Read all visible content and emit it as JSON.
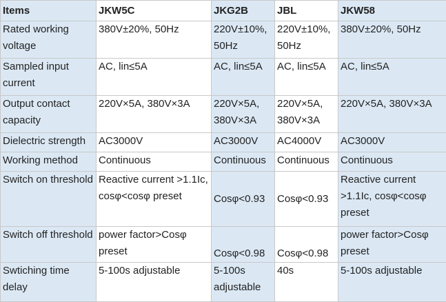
{
  "table": {
    "header": [
      "Items",
      "JKW5C",
      "JKG2B",
      "JBL",
      "JKW58"
    ],
    "rows": [
      [
        "Rated working voltage",
        "380V±20%, 50Hz",
        "220V±10%, 50Hz",
        "220V±10%, 50Hz",
        "380V±20%, 50Hz"
      ],
      [
        "Sampled input current",
        "AC, lin≤5A",
        "AC, lin≤5A",
        "AC, lin≤5A",
        "AC, lin≤5A"
      ],
      [
        "Output contact capacity",
        "220V×5A, 380V×3A",
        "220V×5A, 380V×3A",
        "220V×5A, 380V×3A",
        "220V×5A, 380V×3A"
      ],
      [
        "Dielectric strength",
        "AC3000V",
        "AC3000V",
        "AC4000V",
        "AC3000V"
      ],
      [
        "Working method",
        "Continuous",
        "Continuous",
        "Continuous",
        "Continuous"
      ],
      [
        "Switch on threshold",
        "Reactive current >1.1Ic, cosφ<cosφ preset",
        "Cosφ<0.93",
        "Cosφ<0.93",
        "Reactive current >1.1Ic, cosφ<cosφ preset"
      ],
      [
        "Switch off threshold",
        "power factor>Cosφ preset",
        "Cosφ<0.98",
        "Cosφ<0.98",
        "power factor>Cosφ preset"
      ],
      [
        "Swtiching time delay",
        "5-100s adjustable",
        "5-100s adjustable",
        "40s",
        "5-100s adjustable"
      ]
    ]
  }
}
